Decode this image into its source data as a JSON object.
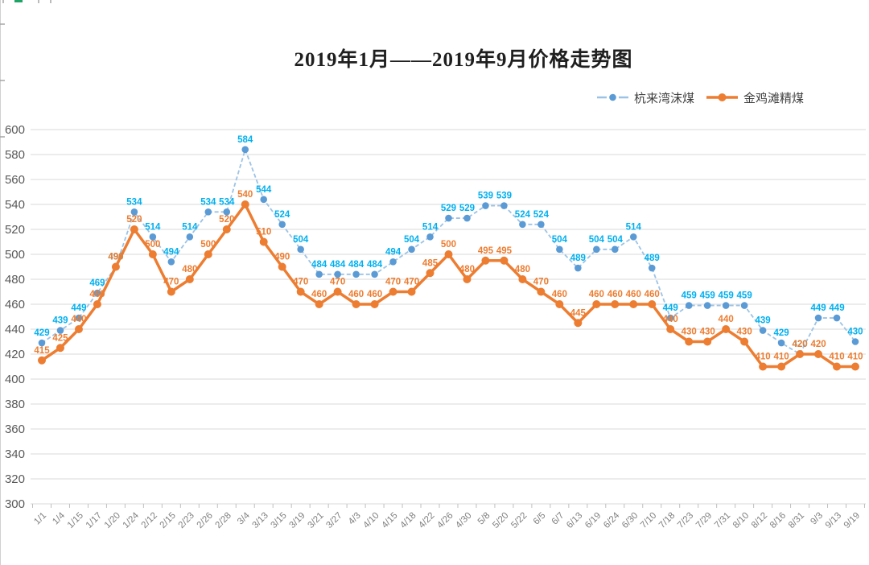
{
  "title": {
    "text": "2019年1月——2019年9月价格走势图"
  },
  "legend": {
    "position": "top-right",
    "items": [
      "杭来湾沫煤",
      "金鸡滩精煤"
    ]
  },
  "chart_data": {
    "type": "line",
    "title": "2019年1月——2019年9月价格走势图",
    "xlabel": "",
    "ylabel": "",
    "grid": true,
    "data_labels": true,
    "legend_position": "top-right",
    "categories": [
      "1/1",
      "1/4",
      "1/15",
      "1/17",
      "1/20",
      "1/24",
      "2/12",
      "2/15",
      "2/23",
      "2/26",
      "2/28",
      "3/4",
      "3/13",
      "3/15",
      "3/19",
      "3/21",
      "3/27",
      "4/3",
      "4/10",
      "4/15",
      "4/18",
      "4/22",
      "4/26",
      "4/30",
      "5/8",
      "5/20",
      "5/22",
      "6/5",
      "6/7",
      "6/13",
      "6/19",
      "6/24",
      "6/30",
      "7/10",
      "7/18",
      "7/23",
      "7/29",
      "7/31",
      "8/10",
      "8/12",
      "8/16",
      "8/31",
      "9/3",
      "9/13",
      "9/19"
    ],
    "series": [
      {
        "name": "杭来湾沫煤",
        "line_style": "dashed",
        "line_color": "#9CC3E6",
        "marker_color": "#5B9BD5",
        "label_color": "#00B0F0",
        "values": [
          429,
          439,
          449,
          469,
          490,
          534,
          514,
          494,
          514,
          534,
          534,
          584,
          544,
          524,
          504,
          484,
          484,
          484,
          484,
          494,
          504,
          514,
          529,
          529,
          539,
          539,
          524,
          524,
          504,
          489,
          504,
          504,
          514,
          489,
          449,
          459,
          459,
          459,
          459,
          439,
          429,
          420,
          449,
          449,
          430
        ]
      },
      {
        "name": "金鸡滩精煤",
        "line_style": "solid",
        "line_color": "#ED7D31",
        "marker_color": "#ED7D31",
        "label_color": "#ED7D31",
        "values": [
          415,
          425,
          440,
          460,
          490,
          520,
          500,
          470,
          480,
          500,
          520,
          540,
          510,
          490,
          470,
          460,
          470,
          460,
          460,
          470,
          470,
          485,
          500,
          480,
          495,
          495,
          480,
          470,
          460,
          445,
          460,
          460,
          460,
          460,
          440,
          430,
          430,
          440,
          430,
          410,
          410,
          420,
          420,
          410,
          410
        ]
      }
    ],
    "y_axis": {
      "min": 300,
      "max": 600,
      "step": 20,
      "ticks": [
        600,
        580,
        560,
        540,
        520,
        500,
        480,
        460,
        440,
        420,
        400,
        380,
        360,
        340,
        320,
        300
      ]
    },
    "ylim": [
      300,
      600
    ]
  },
  "colors": {
    "grid_line": "#D9D9D9",
    "axis_tick": "#BFBFBF",
    "axis_text": "#595959",
    "x_label_text": "#808080",
    "title_text": "#1f1f1f",
    "legend_text": "#404040",
    "sheet_edge": "#D0D0D0",
    "sheet_tick": "#A6A6A6",
    "sheet_green_mark": "#21A366",
    "background": "#FFFFFF"
  }
}
